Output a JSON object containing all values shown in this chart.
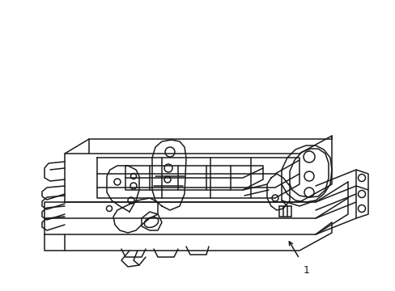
{
  "background_color": "#ffffff",
  "line_color": "#1a1a1a",
  "line_width": 1.1,
  "label_text": "1",
  "figsize": [
    4.89,
    3.6
  ],
  "dpi": 100
}
